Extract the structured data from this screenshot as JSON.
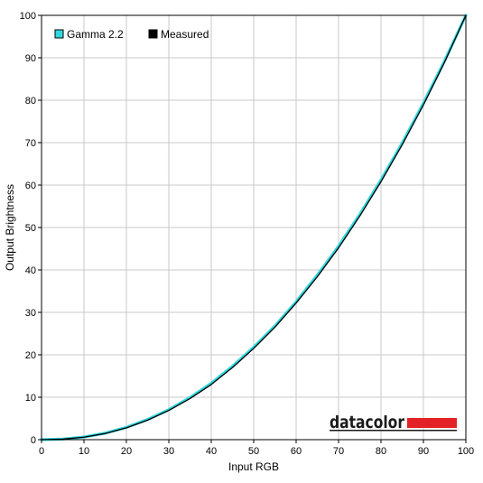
{
  "chart_data": {
    "type": "line",
    "xlabel": "Input RGB",
    "ylabel": "Output Brightness",
    "xlim": [
      0,
      100
    ],
    "ylim": [
      0,
      100
    ],
    "x_ticks": [
      "0",
      "10",
      "20",
      "30",
      "40",
      "50",
      "60",
      "70",
      "80",
      "90",
      "100"
    ],
    "y_ticks": [
      "0",
      "10",
      "20",
      "30",
      "40",
      "50",
      "60",
      "70",
      "80",
      "90",
      "100"
    ],
    "grid": true,
    "legend_position": "top-left",
    "x": [
      0,
      5,
      10,
      15,
      20,
      25,
      30,
      35,
      40,
      45,
      50,
      55,
      60,
      65,
      70,
      75,
      80,
      85,
      90,
      95,
      100
    ],
    "series": [
      {
        "name": "Gamma 2.2",
        "color": "#33d6e0",
        "values": [
          0,
          0.14,
          0.63,
          1.54,
          2.9,
          4.76,
          7.07,
          9.94,
          13.3,
          17.3,
          21.8,
          26.8,
          32.5,
          38.8,
          45.6,
          53.1,
          61.2,
          69.9,
          79.3,
          89.3,
          100
        ]
      },
      {
        "name": "Measured",
        "color": "#000000",
        "values": [
          0,
          0.12,
          0.58,
          1.45,
          2.8,
          4.6,
          6.9,
          9.7,
          13.0,
          17.0,
          21.5,
          26.5,
          32.2,
          38.4,
          45.2,
          52.7,
          60.8,
          69.5,
          78.9,
          89.0,
          100
        ]
      }
    ]
  },
  "brand": {
    "name": "datacolor",
    "accent_color": "#e32227"
  }
}
